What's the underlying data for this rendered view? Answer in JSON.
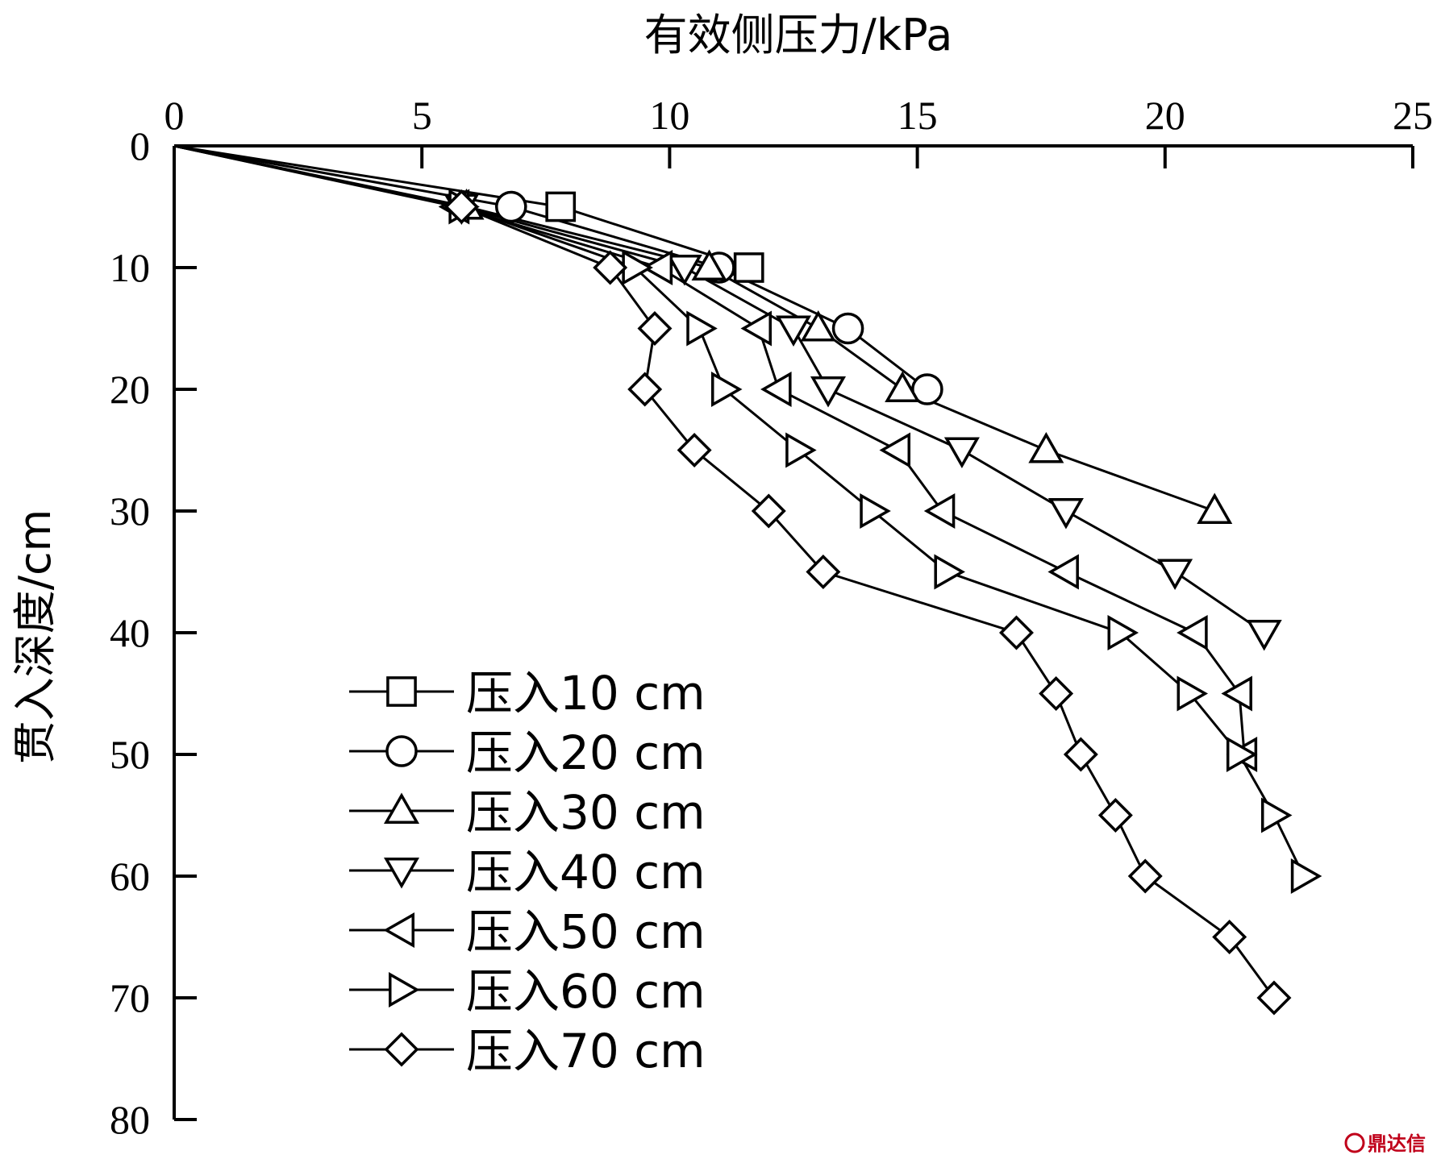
{
  "chart_data": {
    "type": "line",
    "xlabel": "有效侧压力/kPa",
    "ylabel": "贯入深度/cm",
    "xlim": [
      0,
      25
    ],
    "ylim": [
      0,
      80
    ],
    "x_axis_position": "top",
    "y_axis_inverted": true,
    "xticks": [
      "0",
      "5",
      "10",
      "15",
      "20",
      "25"
    ],
    "yticks": [
      "0",
      "10",
      "20",
      "30",
      "40",
      "50",
      "60",
      "70",
      "80"
    ],
    "grid": false,
    "legend_position": "bottom-left",
    "series": [
      {
        "name": "压入10 cm",
        "marker": "square",
        "points": [
          [
            0,
            0
          ],
          [
            7.8,
            5
          ],
          [
            11.6,
            10
          ]
        ]
      },
      {
        "name": "压入20 cm",
        "marker": "circle",
        "points": [
          [
            0,
            0
          ],
          [
            6.8,
            5
          ],
          [
            11.0,
            10
          ],
          [
            13.6,
            15
          ],
          [
            15.2,
            20
          ]
        ]
      },
      {
        "name": "压入30 cm",
        "marker": "triangle-up",
        "points": [
          [
            0,
            0
          ],
          [
            5.9,
            5
          ],
          [
            10.8,
            10
          ],
          [
            13.0,
            15
          ],
          [
            14.7,
            20
          ],
          [
            17.6,
            25
          ],
          [
            21.0,
            30
          ]
        ]
      },
      {
        "name": "压入40 cm",
        "marker": "triangle-down",
        "points": [
          [
            0,
            0
          ],
          [
            5.8,
            5
          ],
          [
            10.3,
            10
          ],
          [
            12.5,
            15
          ],
          [
            13.2,
            20
          ],
          [
            15.9,
            25
          ],
          [
            18.0,
            30
          ],
          [
            20.2,
            35
          ],
          [
            22.0,
            40
          ]
        ]
      },
      {
        "name": "压入50 cm",
        "marker": "triangle-left",
        "points": [
          [
            0,
            0
          ],
          [
            5.7,
            5
          ],
          [
            9.8,
            10
          ],
          [
            11.8,
            15
          ],
          [
            12.2,
            20
          ],
          [
            14.6,
            25
          ],
          [
            15.5,
            30
          ],
          [
            18.0,
            35
          ],
          [
            20.6,
            40
          ],
          [
            21.5,
            45
          ],
          [
            21.6,
            50
          ]
        ]
      },
      {
        "name": "压入60 cm",
        "marker": "triangle-right",
        "points": [
          [
            0,
            0
          ],
          [
            5.8,
            5
          ],
          [
            9.3,
            10
          ],
          [
            10.6,
            15
          ],
          [
            11.1,
            20
          ],
          [
            12.6,
            25
          ],
          [
            14.1,
            30
          ],
          [
            15.6,
            35
          ],
          [
            19.1,
            40
          ],
          [
            20.5,
            45
          ],
          [
            21.5,
            50
          ],
          [
            22.2,
            55
          ],
          [
            22.8,
            60
          ]
        ]
      },
      {
        "name": "压入70 cm",
        "marker": "diamond",
        "points": [
          [
            0,
            0
          ],
          [
            5.8,
            5
          ],
          [
            8.8,
            10
          ],
          [
            9.7,
            15
          ],
          [
            9.5,
            20
          ],
          [
            10.5,
            25
          ],
          [
            12.0,
            30
          ],
          [
            13.1,
            35
          ],
          [
            17.0,
            40
          ],
          [
            17.8,
            45
          ],
          [
            18.3,
            50
          ],
          [
            19.0,
            55
          ],
          [
            19.6,
            60
          ],
          [
            21.3,
            65
          ],
          [
            22.2,
            70
          ]
        ]
      }
    ]
  },
  "watermark": {
    "text": "鼎达信"
  }
}
